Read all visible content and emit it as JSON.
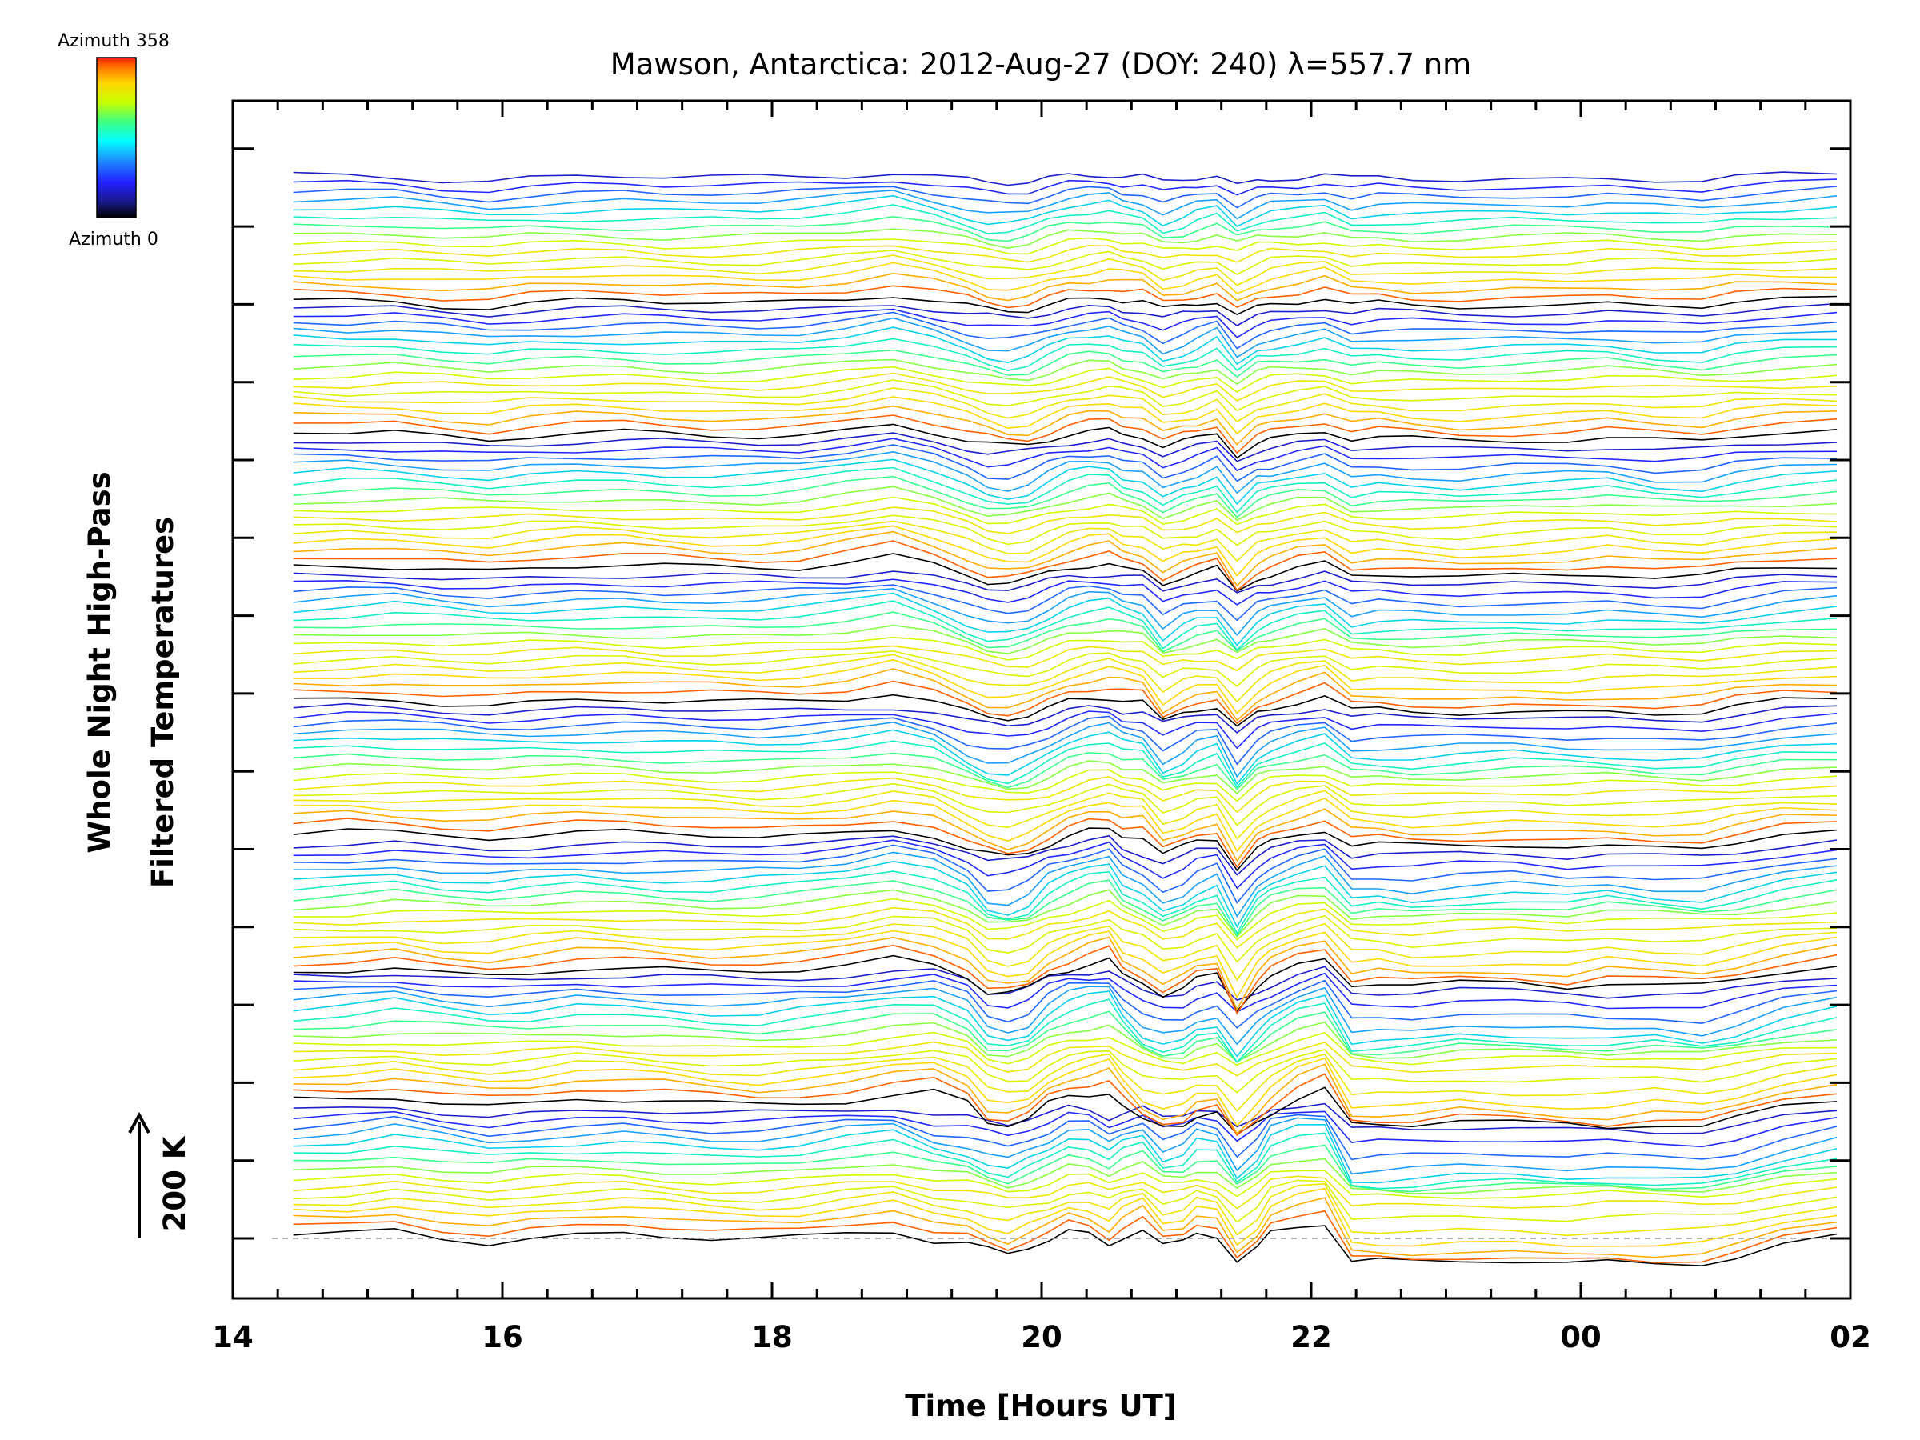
{
  "chart_data": {
    "type": "line",
    "title": "Mawson, Antarctica: 2012-Aug-27 (DOY: 240) λ=557.7 nm",
    "xlabel": "Time [Hours UT]",
    "ylabel_line1": "Whole Night High-Pass",
    "ylabel_line2": "Filtered Temperatures",
    "x_tick_labels": [
      "14",
      "16",
      "18",
      "20",
      "22",
      "00",
      "02"
    ],
    "xlim": [
      14,
      26
    ],
    "scale_bar": {
      "label": "200 K",
      "value_K": 200
    },
    "colorbar": {
      "top_label": "Azimuth 358",
      "bottom_label": "Azimuth 0",
      "colors": [
        "#000000",
        "#1a1a8c",
        "#2020ff",
        "#1e90ff",
        "#00ffff",
        "#40ff80",
        "#c8ff00",
        "#ffd700",
        "#ff8000",
        "#ff2000"
      ]
    },
    "series_summary": {
      "count": 128,
      "groups": 8,
      "per_group": 16,
      "offset_K": 10,
      "color_by": "azimuth",
      "baseline": "dashed grey at lowest trace"
    },
    "x_times": [
      14.45,
      14.85,
      15.2,
      15.55,
      15.9,
      16.2,
      16.55,
      16.9,
      17.2,
      17.55,
      17.9,
      18.2,
      18.55,
      18.9,
      19.2,
      19.45,
      19.6,
      19.75,
      19.9,
      20.05,
      20.2,
      20.35,
      20.5,
      20.6,
      20.75,
      20.9,
      21.05,
      21.15,
      21.3,
      21.45,
      21.6,
      21.7,
      21.9,
      22.1,
      22.3,
      22.5,
      22.75,
      23.1,
      23.5,
      23.9,
      24.2,
      24.55,
      24.9,
      25.15,
      25.5,
      25.9
    ],
    "group_patterns": [
      [
        2,
        4,
        10,
        2,
        -4,
        1,
        4,
        6,
        2,
        -2,
        -2,
        1,
        8,
        12,
        -2,
        -6,
        -14,
        -20,
        -12,
        -4,
        8,
        6,
        -6,
        4,
        12,
        -10,
        -6,
        6,
        2,
        -30,
        -12,
        10,
        18,
        20,
        -30,
        -30,
        -30,
        -28,
        -28,
        -30,
        -28,
        -30,
        -30,
        -24,
        -10,
        0
      ],
      [
        4,
        6,
        10,
        4,
        0,
        2,
        8,
        6,
        4,
        0,
        -2,
        2,
        6,
        14,
        18,
        4,
        -22,
        -26,
        -20,
        0,
        10,
        14,
        18,
        0,
        -20,
        -28,
        -26,
        -16,
        -12,
        -40,
        -20,
        -8,
        10,
        20,
        -26,
        -26,
        -26,
        -20,
        -22,
        -24,
        -26,
        -22,
        -26,
        -18,
        -4,
        4
      ],
      [
        -2,
        0,
        4,
        -2,
        -4,
        0,
        4,
        2,
        0,
        -2,
        0,
        2,
        8,
        18,
        10,
        -6,
        -28,
        -30,
        -24,
        -6,
        2,
        10,
        16,
        -4,
        -14,
        -30,
        -22,
        -12,
        -6,
        -48,
        -16,
        -4,
        8,
        14,
        -18,
        -16,
        -20,
        -16,
        -14,
        -18,
        -12,
        -16,
        -18,
        -12,
        -2,
        6
      ],
      [
        4,
        8,
        6,
        4,
        2,
        4,
        6,
        6,
        4,
        2,
        0,
        2,
        6,
        12,
        4,
        -14,
        -22,
        -26,
        -20,
        -10,
        2,
        10,
        12,
        4,
        2,
        -22,
        -14,
        -6,
        -2,
        -38,
        -12,
        -4,
        4,
        10,
        -10,
        -10,
        -12,
        -10,
        -8,
        -10,
        -10,
        -12,
        -12,
        -6,
        2,
        4
      ],
      [
        2,
        4,
        6,
        2,
        0,
        2,
        4,
        4,
        2,
        2,
        2,
        4,
        8,
        16,
        4,
        -10,
        -18,
        -20,
        -16,
        -6,
        4,
        8,
        10,
        6,
        2,
        -24,
        -12,
        -8,
        -6,
        -30,
        -10,
        -4,
        4,
        10,
        -10,
        -8,
        -10,
        -12,
        -10,
        -10,
        -8,
        -10,
        -10,
        -4,
        2,
        4
      ],
      [
        4,
        6,
        4,
        2,
        0,
        4,
        6,
        6,
        4,
        2,
        2,
        4,
        12,
        20,
        8,
        -6,
        -16,
        -18,
        -14,
        -4,
        4,
        8,
        10,
        2,
        -2,
        -18,
        -10,
        -6,
        2,
        -26,
        -8,
        -4,
        4,
        8,
        -8,
        -6,
        -8,
        -10,
        -6,
        -4,
        -2,
        -8,
        -8,
        -2,
        2,
        4
      ],
      [
        6,
        4,
        6,
        2,
        -2,
        2,
        4,
        4,
        2,
        0,
        0,
        2,
        8,
        16,
        6,
        -4,
        -10,
        -14,
        -12,
        -4,
        4,
        8,
        10,
        4,
        0,
        -14,
        -8,
        -4,
        4,
        -22,
        -6,
        -2,
        2,
        6,
        -4,
        -2,
        -4,
        -6,
        -4,
        -2,
        0,
        -4,
        -6,
        0,
        4,
        6
      ],
      [
        2,
        2,
        2,
        -2,
        -4,
        0,
        2,
        2,
        0,
        0,
        0,
        2,
        6,
        12,
        4,
        -4,
        -10,
        -12,
        -10,
        -2,
        4,
        6,
        8,
        4,
        2,
        -10,
        -6,
        -2,
        2,
        -14,
        -4,
        0,
        2,
        6,
        -4,
        -2,
        -4,
        -4,
        -2,
        -2,
        0,
        -2,
        -4,
        0,
        2,
        4
      ]
    ]
  }
}
